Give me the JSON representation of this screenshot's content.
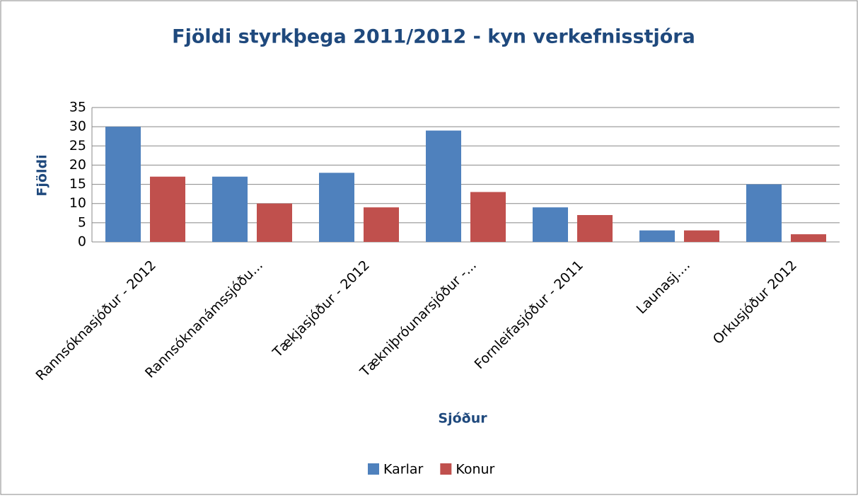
{
  "chart_data": {
    "type": "bar",
    "title": "Fjöldi styrkþega 2011/2012 - kyn verkefnisstjóra",
    "x_label": "Sjóður",
    "y_label": "Fjöldi",
    "categories": [
      "Rannsóknasjóður - 2012",
      "Rannsóknanámssjóðu...",
      "Tækjasjóður - 2012",
      "Tækniþróunarsjóður -...",
      "Fornleifasjóður - 2011",
      "Launasj....",
      "Orkusjóður 2012"
    ],
    "series": [
      {
        "name": "Karlar",
        "color": "#4f81bd",
        "values": [
          30,
          17,
          18,
          29,
          9,
          3,
          15
        ]
      },
      {
        "name": "Konur",
        "color": "#c0504d",
        "values": [
          17,
          10,
          9,
          13,
          7,
          3,
          2
        ]
      }
    ],
    "ylim": [
      0,
      35
    ],
    "yticks": [
      0,
      5,
      10,
      15,
      20,
      25,
      30,
      35
    ],
    "grid": true,
    "legend": "bottom"
  }
}
